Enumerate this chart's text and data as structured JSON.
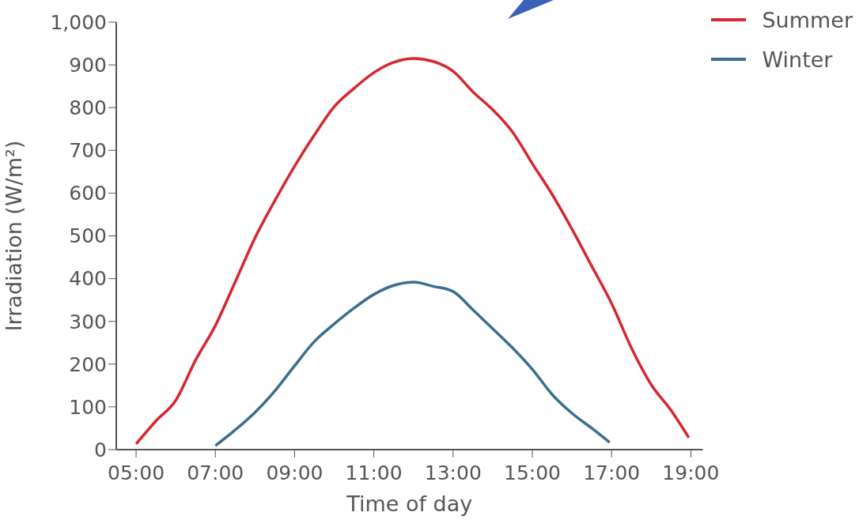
{
  "chart_data": {
    "type": "line",
    "xlabel": "Time of day",
    "ylabel": "Irradiation (W/m²)",
    "xlim": [
      4.5,
      19.3
    ],
    "ylim": [
      0,
      1000
    ],
    "xticks": [
      {
        "value": 5,
        "label": "05:00"
      },
      {
        "value": 7,
        "label": "07:00"
      },
      {
        "value": 9,
        "label": "09:00"
      },
      {
        "value": 11,
        "label": "11:00"
      },
      {
        "value": 13,
        "label": "13:00"
      },
      {
        "value": 15,
        "label": "15:00"
      },
      {
        "value": 17,
        "label": "17:00"
      },
      {
        "value": 19,
        "label": "19:00"
      }
    ],
    "yticks": [
      0,
      100,
      200,
      300,
      400,
      500,
      600,
      700,
      800,
      900,
      {
        "value": 1000,
        "label": "1,000"
      }
    ],
    "grid": false,
    "legend": "top right",
    "marker": "none",
    "line_style": "solid",
    "series": [
      {
        "name": "Summer",
        "color": "#d7262e",
        "x": [
          5,
          5.5,
          6,
          6.5,
          7,
          7.5,
          8,
          8.5,
          9,
          9.5,
          10,
          10.5,
          11,
          11.5,
          12,
          12.5,
          13,
          13.5,
          14,
          14.5,
          15,
          15.5,
          16,
          16.5,
          17,
          17.5,
          18,
          18.5,
          18.95
        ],
        "values": [
          13,
          67,
          115,
          209,
          290,
          392,
          495,
          582,
          663,
          736,
          802,
          845,
          882,
          906,
          915,
          908,
          885,
          837,
          795,
          743,
          669,
          597,
          516,
          429,
          342,
          238,
          152,
          92,
          28
        ]
      },
      {
        "name": "Winter",
        "color": "#3a6e8f",
        "x": [
          7,
          7.5,
          8,
          8.5,
          9,
          9.5,
          10,
          10.5,
          11,
          11.5,
          12,
          12.5,
          13,
          13.5,
          14,
          14.5,
          15,
          15.5,
          16,
          16.5,
          16.95
        ],
        "values": [
          9,
          46,
          87,
          137,
          196,
          253,
          294,
          331,
          363,
          384,
          392,
          382,
          370,
          327,
          283,
          238,
          188,
          129,
          85,
          50,
          17
        ]
      }
    ]
  }
}
